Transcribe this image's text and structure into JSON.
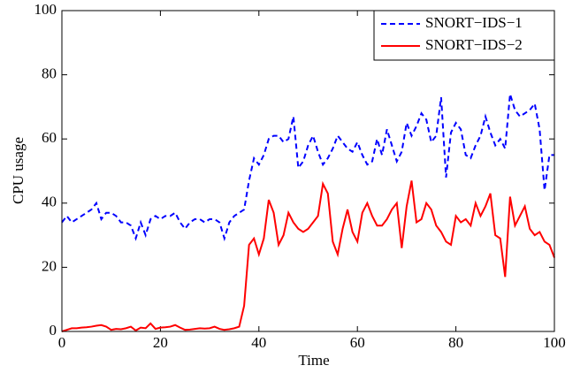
{
  "chart_data": {
    "type": "line",
    "xlabel": "Time",
    "ylabel": "CPU usage",
    "x": [
      0,
      1,
      2,
      3,
      4,
      5,
      6,
      7,
      8,
      9,
      10,
      11,
      12,
      13,
      14,
      15,
      16,
      17,
      18,
      19,
      20,
      21,
      22,
      23,
      24,
      25,
      26,
      27,
      28,
      29,
      30,
      31,
      32,
      33,
      34,
      35,
      36,
      37,
      38,
      39,
      40,
      41,
      42,
      43,
      44,
      45,
      46,
      47,
      48,
      49,
      50,
      51,
      52,
      53,
      54,
      55,
      56,
      57,
      58,
      59,
      60,
      61,
      62,
      63,
      64,
      65,
      66,
      67,
      68,
      69,
      70,
      71,
      72,
      73,
      74,
      75,
      76,
      77,
      78,
      79,
      80,
      81,
      82,
      83,
      84,
      85,
      86,
      87,
      88,
      89,
      90,
      91,
      92,
      93,
      94,
      95,
      96,
      97,
      98,
      99,
      100
    ],
    "series": [
      {
        "name": "SNORT−IDS−1",
        "color": "#0000ff",
        "style": "dashed",
        "values": [
          34,
          36,
          34,
          35,
          36,
          37,
          38,
          40,
          35,
          37,
          37,
          36,
          34,
          34,
          33,
          29,
          34,
          30,
          35,
          36,
          35,
          36,
          36,
          37,
          34,
          32,
          34,
          35,
          35,
          34,
          35,
          35,
          34,
          29,
          34,
          36,
          37,
          38,
          47,
          54,
          52,
          55,
          60,
          61,
          61,
          59,
          60,
          67,
          51,
          53,
          58,
          61,
          56,
          52,
          54,
          57,
          61,
          59,
          57,
          56,
          59,
          55,
          52,
          53,
          60,
          55,
          63,
          58,
          53,
          56,
          65,
          61,
          64,
          68,
          66,
          59,
          61,
          73,
          48,
          62,
          65,
          63,
          55,
          54,
          58,
          61,
          67,
          62,
          58,
          60,
          57,
          74,
          69,
          67,
          68,
          69,
          71,
          63,
          44,
          55,
          55
        ]
      },
      {
        "name": "SNORT−IDS−2",
        "color": "#ff0000",
        "style": "solid",
        "values": [
          0,
          0.5,
          1,
          1,
          1.2,
          1.3,
          1.5,
          1.8,
          2,
          1.5,
          0.5,
          0.8,
          0.7,
          1,
          1.5,
          0.3,
          1.2,
          1,
          2.5,
          0.8,
          1.2,
          1.3,
          1.5,
          2,
          1.2,
          0.5,
          0.6,
          0.8,
          1,
          0.9,
          1,
          1.5,
          0.8,
          0.5,
          0.7,
          1,
          1.5,
          8,
          27,
          29,
          24,
          29,
          41,
          37,
          27,
          30,
          37,
          34,
          32,
          31,
          32,
          34,
          36,
          46,
          43,
          28,
          24,
          32,
          38,
          31,
          28,
          37,
          40,
          36,
          33,
          33,
          35,
          38,
          40,
          26,
          39,
          47,
          34,
          35,
          40,
          38,
          33,
          31,
          28,
          27,
          36,
          34,
          35,
          33,
          40,
          36,
          39,
          43,
          30,
          29,
          17,
          42,
          33,
          36,
          39,
          32,
          30,
          31,
          28,
          27,
          23
        ]
      }
    ],
    "xlim": [
      0,
      100
    ],
    "xticks": [
      0,
      20,
      40,
      60,
      80,
      100
    ],
    "ylim": [
      0,
      100
    ],
    "yticks": [
      0,
      20,
      40,
      60,
      80,
      100
    ],
    "legend": "top-right"
  }
}
